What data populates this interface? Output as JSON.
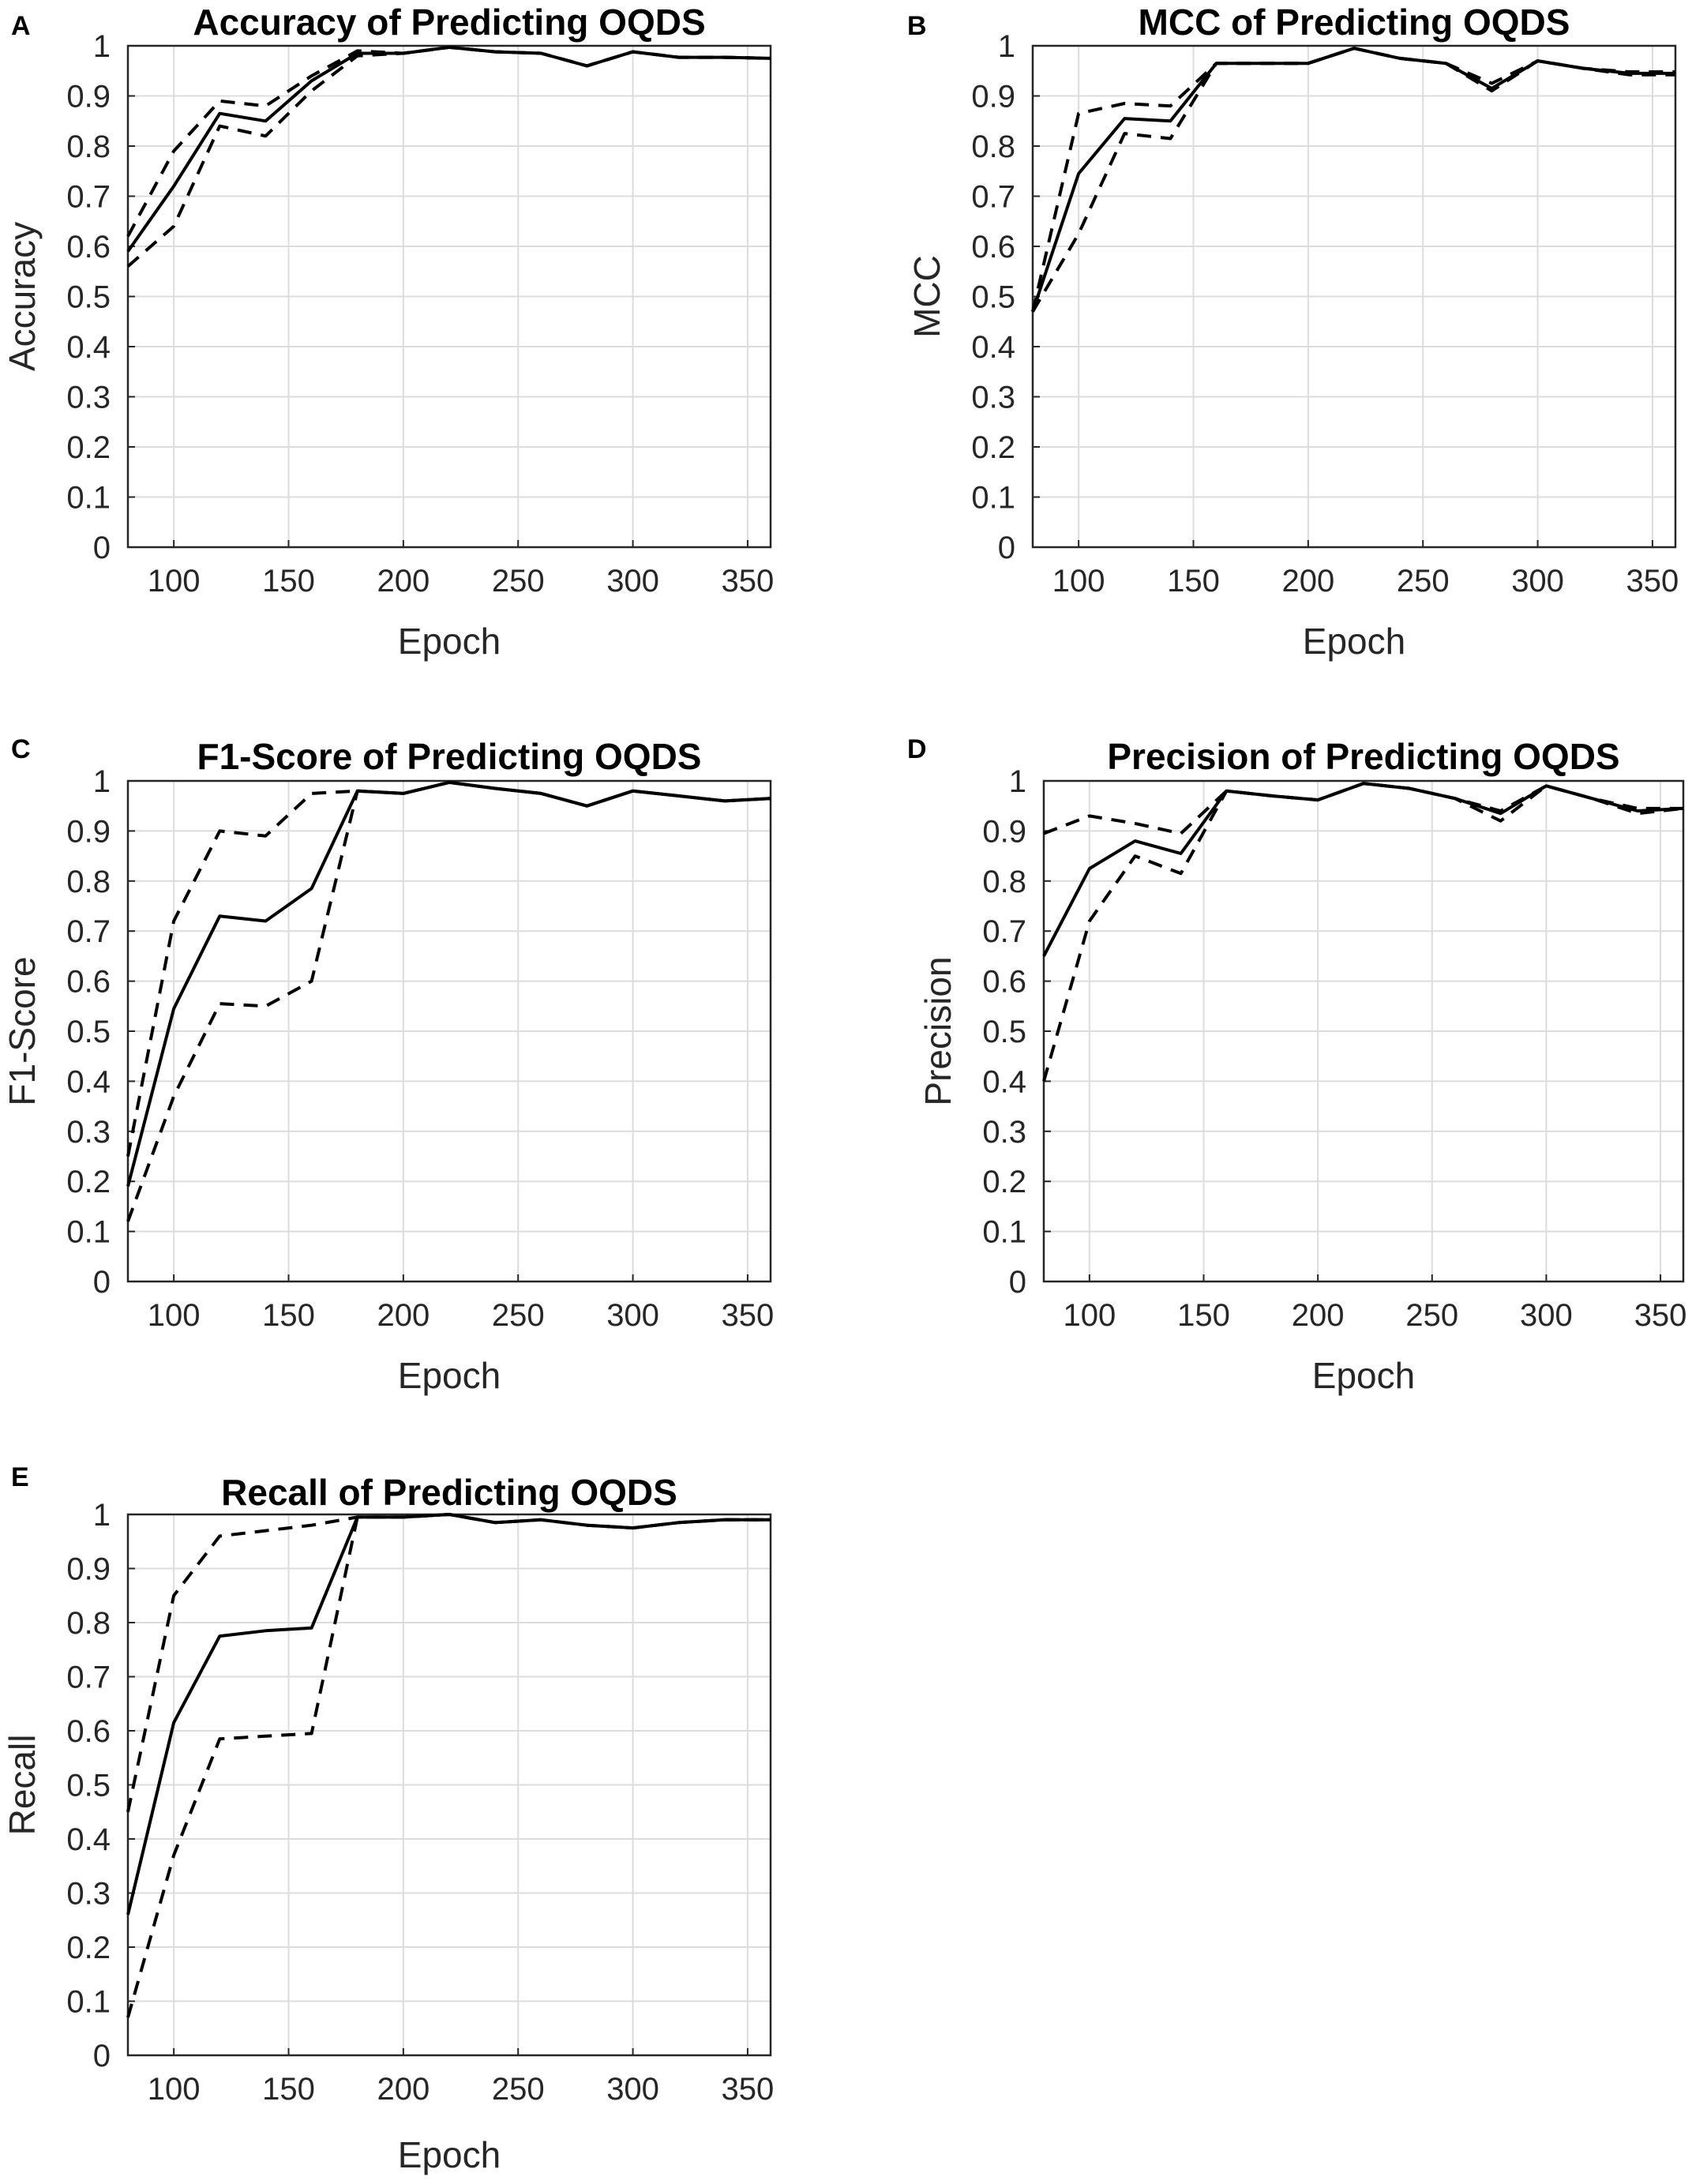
{
  "chart_data": [
    {
      "type": "line",
      "panel": "A",
      "title": "Accuracy of Predicting OQDS",
      "xlabel": "Epoch",
      "ylabel": "Accuracy",
      "xlim": [
        80,
        360
      ],
      "ylim": [
        0,
        1
      ],
      "xticks": [
        100,
        150,
        200,
        250,
        300,
        350
      ],
      "yticks": [
        0,
        0.1,
        0.2,
        0.3,
        0.4,
        0.5,
        0.6,
        0.7,
        0.8,
        0.9,
        1
      ],
      "grid": true,
      "x": [
        80,
        100,
        120,
        140,
        160,
        180,
        200,
        220,
        240,
        260,
        280,
        300,
        320,
        340,
        360
      ],
      "series": [
        {
          "name": "mean",
          "style": "solid",
          "values": [
            0.59,
            0.72,
            0.865,
            0.85,
            0.93,
            0.985,
            0.985,
            0.997,
            0.988,
            0.985,
            0.96,
            0.988,
            0.977,
            0.977,
            0.975
          ]
        },
        {
          "name": "upper bound",
          "style": "dashed",
          "values": [
            0.62,
            0.79,
            0.89,
            0.88,
            0.94,
            0.99,
            0.985,
            0.997,
            0.988,
            0.985,
            0.96,
            0.988,
            0.977,
            0.977,
            0.975
          ]
        },
        {
          "name": "lower bound",
          "style": "dashed",
          "values": [
            0.56,
            0.64,
            0.84,
            0.82,
            0.91,
            0.98,
            0.985,
            0.997,
            0.988,
            0.985,
            0.96,
            0.988,
            0.977,
            0.977,
            0.975
          ]
        }
      ]
    },
    {
      "type": "line",
      "panel": "B",
      "title": "MCC of Predicting OQDS",
      "xlabel": "Epoch",
      "ylabel": "MCC",
      "xlim": [
        80,
        360
      ],
      "ylim": [
        0,
        1
      ],
      "xticks": [
        100,
        150,
        200,
        250,
        300,
        350
      ],
      "yticks": [
        0,
        0.1,
        0.2,
        0.3,
        0.4,
        0.5,
        0.6,
        0.7,
        0.8,
        0.9,
        1
      ],
      "grid": true,
      "x": [
        80,
        100,
        120,
        140,
        160,
        180,
        200,
        220,
        240,
        260,
        280,
        300,
        320,
        340,
        360
      ],
      "series": [
        {
          "name": "mean",
          "style": "solid",
          "values": [
            0.47,
            0.745,
            0.855,
            0.85,
            0.965,
            0.965,
            0.965,
            0.995,
            0.975,
            0.965,
            0.915,
            0.97,
            0.955,
            0.945,
            0.945
          ]
        },
        {
          "name": "upper bound",
          "style": "dashed",
          "values": [
            0.47,
            0.865,
            0.885,
            0.88,
            0.965,
            0.965,
            0.965,
            0.995,
            0.975,
            0.965,
            0.925,
            0.97,
            0.955,
            0.948,
            0.948
          ]
        },
        {
          "name": "lower bound",
          "style": "dashed",
          "values": [
            0.47,
            0.625,
            0.825,
            0.815,
            0.965,
            0.965,
            0.965,
            0.995,
            0.975,
            0.965,
            0.91,
            0.97,
            0.955,
            0.942,
            0.942
          ]
        }
      ]
    },
    {
      "type": "line",
      "panel": "C",
      "title": "F1-Score of Predicting OQDS",
      "xlabel": "Epoch",
      "ylabel": "F1-Score",
      "xlim": [
        80,
        360
      ],
      "ylim": [
        0,
        1
      ],
      "xticks": [
        100,
        150,
        200,
        250,
        300,
        350
      ],
      "yticks": [
        0,
        0.1,
        0.2,
        0.3,
        0.4,
        0.5,
        0.6,
        0.7,
        0.8,
        0.9,
        1
      ],
      "grid": true,
      "x": [
        80,
        100,
        120,
        140,
        160,
        180,
        200,
        220,
        240,
        260,
        280,
        300,
        320,
        340,
        360
      ],
      "series": [
        {
          "name": "mean",
          "style": "solid",
          "values": [
            0.19,
            0.545,
            0.73,
            0.72,
            0.785,
            0.98,
            0.975,
            0.997,
            0.985,
            0.975,
            0.95,
            0.98,
            0.97,
            0.96,
            0.965
          ]
        },
        {
          "name": "upper bound",
          "style": "dashed",
          "values": [
            0.25,
            0.72,
            0.9,
            0.89,
            0.975,
            0.98,
            0.975,
            0.997,
            0.985,
            0.975,
            0.95,
            0.98,
            0.97,
            0.96,
            0.965
          ]
        },
        {
          "name": "lower bound",
          "style": "dashed",
          "values": [
            0.12,
            0.37,
            0.555,
            0.55,
            0.6,
            0.98,
            0.975,
            0.997,
            0.985,
            0.975,
            0.95,
            0.98,
            0.97,
            0.96,
            0.965
          ]
        }
      ]
    },
    {
      "type": "line",
      "panel": "D",
      "title": "Precision of Predicting OQDS",
      "xlabel": "Epoch",
      "ylabel": "Precision",
      "xlim": [
        80,
        360
      ],
      "ylim": [
        0,
        1
      ],
      "xticks": [
        100,
        150,
        200,
        250,
        300,
        350
      ],
      "yticks": [
        0,
        0.1,
        0.2,
        0.3,
        0.4,
        0.5,
        0.6,
        0.7,
        0.8,
        0.9,
        1
      ],
      "grid": true,
      "x": [
        80,
        100,
        120,
        140,
        160,
        180,
        200,
        220,
        240,
        260,
        280,
        300,
        320,
        340,
        360
      ],
      "series": [
        {
          "name": "mean",
          "style": "solid",
          "values": [
            0.65,
            0.825,
            0.88,
            0.855,
            0.98,
            0.97,
            0.962,
            0.995,
            0.985,
            0.965,
            0.935,
            0.99,
            0.965,
            0.94,
            0.945
          ]
        },
        {
          "name": "upper bound",
          "style": "dashed",
          "values": [
            0.895,
            0.93,
            0.915,
            0.895,
            0.98,
            0.97,
            0.962,
            0.995,
            0.985,
            0.965,
            0.94,
            0.99,
            0.965,
            0.945,
            0.945
          ]
        },
        {
          "name": "lower bound",
          "style": "dashed",
          "values": [
            0.4,
            0.72,
            0.85,
            0.815,
            0.98,
            0.97,
            0.962,
            0.995,
            0.985,
            0.965,
            0.92,
            0.99,
            0.965,
            0.935,
            0.945
          ]
        }
      ]
    },
    {
      "type": "line",
      "panel": "E",
      "title": "Recall of Predicting OQDS",
      "xlabel": "Epoch",
      "ylabel": "Recall",
      "xlim": [
        80,
        360
      ],
      "ylim": [
        0,
        1
      ],
      "xticks": [
        100,
        150,
        200,
        250,
        300,
        350
      ],
      "yticks": [
        0,
        0.1,
        0.2,
        0.3,
        0.4,
        0.5,
        0.6,
        0.7,
        0.8,
        0.9,
        1
      ],
      "grid": true,
      "x": [
        80,
        100,
        120,
        140,
        160,
        180,
        200,
        220,
        240,
        260,
        280,
        300,
        320,
        340,
        360
      ],
      "series": [
        {
          "name": "mean",
          "style": "solid",
          "values": [
            0.26,
            0.615,
            0.775,
            0.785,
            0.79,
            0.995,
            0.995,
            1.0,
            0.985,
            0.99,
            0.98,
            0.975,
            0.985,
            0.99,
            0.99
          ]
        },
        {
          "name": "upper bound",
          "style": "dashed",
          "values": [
            0.45,
            0.85,
            0.96,
            0.97,
            0.98,
            0.995,
            0.995,
            1.0,
            0.985,
            0.99,
            0.98,
            0.975,
            0.985,
            0.99,
            0.99
          ]
        },
        {
          "name": "lower bound",
          "style": "dashed",
          "values": [
            0.07,
            0.37,
            0.585,
            0.59,
            0.595,
            0.995,
            0.995,
            1.0,
            0.985,
            0.99,
            0.98,
            0.975,
            0.985,
            0.99,
            0.99
          ]
        }
      ]
    }
  ]
}
